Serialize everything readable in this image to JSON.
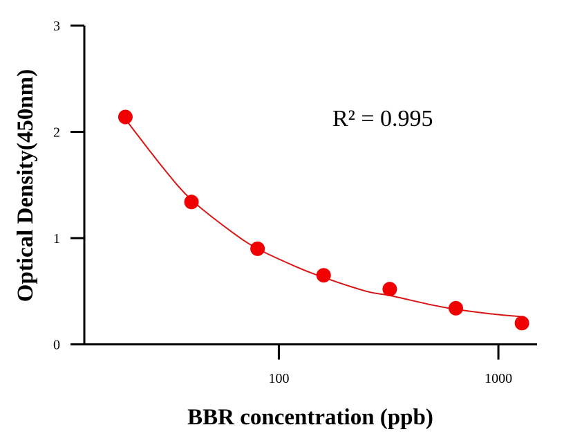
{
  "chart_data": {
    "type": "scatter",
    "x_scale": "log",
    "xlabel": "BBR concentration (ppb)",
    "ylabel": "Optical Density(450nm)",
    "xlim": [
      13,
      1500
    ],
    "ylim": [
      0,
      3
    ],
    "x_ticks": [
      {
        "value": 100,
        "label": "100"
      },
      {
        "value": 1000,
        "label": "1000"
      }
    ],
    "y_ticks": [
      {
        "value": 0,
        "label": "0"
      },
      {
        "value": 1,
        "label": "1"
      },
      {
        "value": 2,
        "label": "2"
      },
      {
        "value": 3,
        "label": "3"
      }
    ],
    "grid": false,
    "series": [
      {
        "points": [
          {
            "x": 20,
            "y": 2.14
          },
          {
            "x": 40,
            "y": 1.34
          },
          {
            "x": 80,
            "y": 0.9
          },
          {
            "x": 160,
            "y": 0.65
          },
          {
            "x": 320,
            "y": 0.52
          },
          {
            "x": 640,
            "y": 0.34
          },
          {
            "x": 1280,
            "y": 0.2
          }
        ],
        "color": "#f00000"
      }
    ],
    "fit_curve": {
      "color": "#d91515",
      "points": [
        {
          "x": 20,
          "y": 2.12
        },
        {
          "x": 30,
          "y": 1.65
        },
        {
          "x": 40,
          "y": 1.36
        },
        {
          "x": 60,
          "y": 1.07
        },
        {
          "x": 80,
          "y": 0.9
        },
        {
          "x": 120,
          "y": 0.73
        },
        {
          "x": 160,
          "y": 0.63
        },
        {
          "x": 250,
          "y": 0.5
        },
        {
          "x": 320,
          "y": 0.46
        },
        {
          "x": 500,
          "y": 0.37
        },
        {
          "x": 640,
          "y": 0.33
        },
        {
          "x": 900,
          "y": 0.29
        },
        {
          "x": 1280,
          "y": 0.26
        }
      ]
    },
    "annotations": [
      {
        "text": "R² = 0.995"
      }
    ]
  }
}
